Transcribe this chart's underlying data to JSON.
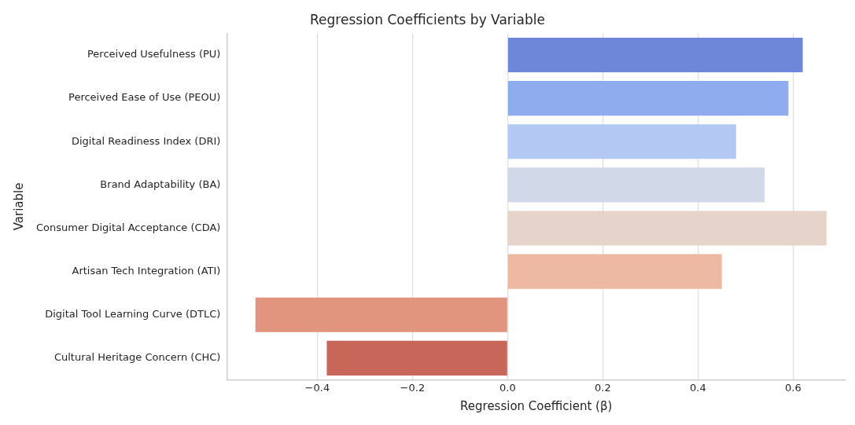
{
  "chart_data": {
    "type": "bar",
    "orientation": "horizontal",
    "title": "Regression Coefficients by Variable",
    "xlabel": "Regression Coefficient (β)",
    "ylabel": "Variable",
    "categories": [
      "Perceived Usefulness (PU)",
      "Perceived Ease of Use (PEOU)",
      "Digital Readiness Index (DRI)",
      "Brand Adaptability (BA)",
      "Consumer Digital Acceptance (CDA)",
      "Artisan Tech Integration (ATI)",
      "Digital Tool Learning Curve (DTLC)",
      "Cultural Heritage Concern (CHC)"
    ],
    "values": [
      0.62,
      0.59,
      0.48,
      0.54,
      0.67,
      0.45,
      -0.53,
      -0.38
    ],
    "colors": [
      "#6f87d8",
      "#8fadee",
      "#b4c8f4",
      "#d1d9e8",
      "#e6d4cb",
      "#edb9a2",
      "#e1957f",
      "#c8665a"
    ],
    "xlim": [
      -0.59,
      0.71
    ],
    "xticks": [
      {
        "value": -0.4,
        "label": "−0.4"
      },
      {
        "value": -0.2,
        "label": "−0.2"
      },
      {
        "value": 0,
        "label": "0.0"
      },
      {
        "value": 0.2,
        "label": "0.2"
      },
      {
        "value": 0.4,
        "label": "0.4"
      },
      {
        "value": 0.6,
        "label": "0.6"
      }
    ],
    "grid": "x",
    "legend": false
  }
}
